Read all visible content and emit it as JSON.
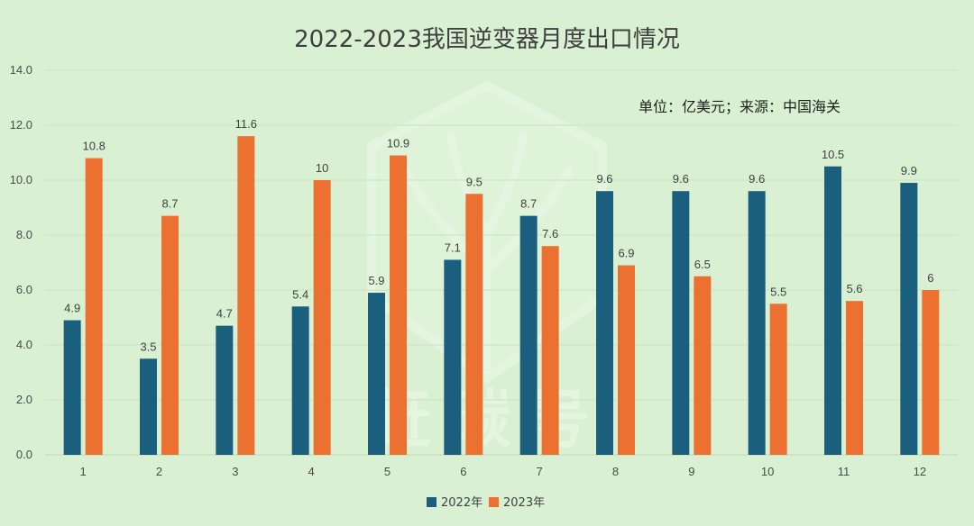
{
  "chart_data": {
    "type": "bar",
    "title": "2022-2023我国逆变器月度出口情况",
    "note": "单位：亿美元；来源：中国海关",
    "categories": [
      "1",
      "2",
      "3",
      "4",
      "5",
      "6",
      "7",
      "8",
      "9",
      "10",
      "11",
      "12"
    ],
    "series": [
      {
        "name": "2022年",
        "color": "#1b5f7e",
        "values": [
          4.9,
          3.5,
          4.7,
          5.4,
          5.9,
          7.1,
          8.7,
          9.6,
          9.6,
          9.6,
          10.5,
          9.9
        ]
      },
      {
        "name": "2023年",
        "color": "#ec7130",
        "values": [
          10.8,
          8.7,
          11.6,
          10.0,
          10.9,
          9.5,
          7.6,
          6.9,
          6.5,
          5.5,
          5.6,
          6.0
        ]
      }
    ],
    "data_labels": [
      [
        "4.9",
        "3.5",
        "4.7",
        "5.4",
        "5.9",
        "7.1",
        "8.7",
        "9.6",
        "9.6",
        "9.6",
        "10.5",
        "9.9"
      ],
      [
        "10.8",
        "8.7",
        "11.6",
        "10",
        "10.9",
        "9.5",
        "7.6",
        "6.9",
        "6.5",
        "5.5",
        "5.6",
        "6"
      ]
    ],
    "ylim": [
      0,
      14
    ],
    "yticks": [
      "0.0",
      "2.0",
      "4.0",
      "6.0",
      "8.0",
      "10.0",
      "12.0",
      "14.0"
    ],
    "grid": true,
    "legend_position": "bottom-center",
    "xlabel": "",
    "ylabel": ""
  },
  "watermark": {
    "text": "赶碳号"
  },
  "colors": {
    "background": "#d9f1d2",
    "grid": "#c8e2c1"
  }
}
